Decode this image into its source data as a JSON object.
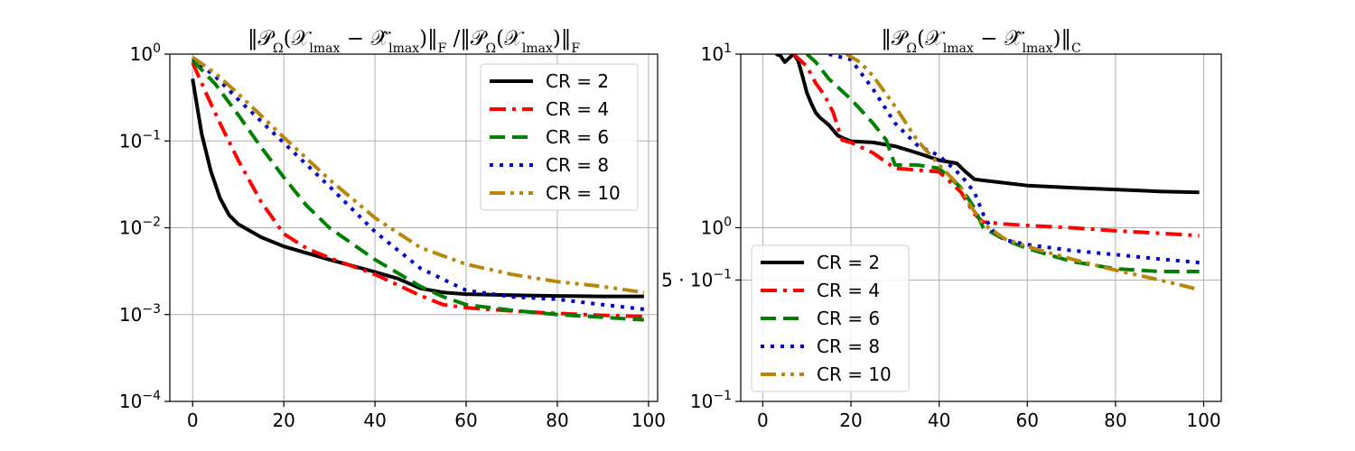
{
  "chart_data": [
    {
      "type": "line",
      "title": "‖𝒫Ω(𝒳lmax − 𝒳̂lmax)‖F /‖𝒫Ω(𝒳lmax)‖F",
      "title_parts": [
        "‖𝒫",
        "Ω",
        "(𝒳",
        "lmax",
        " − ",
        "𝒳̂",
        "lmax",
        ")‖",
        "F",
        " /‖𝒫",
        "Ω",
        "(𝒳",
        "lmax",
        ")‖",
        "F"
      ],
      "xlabel": "",
      "ylabel": "",
      "yscale": "log",
      "xlim": [
        -5,
        102
      ],
      "ylim": [
        0.0001,
        1
      ],
      "xticks": [
        0,
        20,
        40,
        60,
        80,
        100
      ],
      "xtick_labels": [
        "0",
        "20",
        "40",
        "60",
        "80",
        "100"
      ],
      "yticks": [
        0.0001,
        0.001,
        0.01,
        0.1,
        1
      ],
      "ytick_labels": [
        {
          "base": "10",
          "exp": "−4"
        },
        {
          "base": "10",
          "exp": "−3"
        },
        {
          "base": "10",
          "exp": "−2"
        },
        {
          "base": "10",
          "exp": "−1"
        },
        {
          "base": "10",
          "exp": "0"
        }
      ],
      "grid": true,
      "legend_position": "upper-right",
      "series": [
        {
          "name": "CR = 2",
          "color": "#000000",
          "dash": "solid",
          "x": [
            0,
            2,
            4,
            6,
            8,
            10,
            15,
            20,
            30,
            40,
            45,
            50,
            55,
            60,
            70,
            80,
            90,
            99
          ],
          "y": [
            0.52,
            0.12,
            0.045,
            0.022,
            0.014,
            0.011,
            0.0078,
            0.0061,
            0.0043,
            0.0031,
            0.0026,
            0.002,
            0.0018,
            0.00172,
            0.00167,
            0.00164,
            0.00162,
            0.00162
          ]
        },
        {
          "name": "CR = 4",
          "color": "#ff0000",
          "dash": "dashdot",
          "x": [
            0,
            3,
            6,
            10,
            15,
            20,
            25,
            30,
            40,
            50,
            55,
            60,
            70,
            80,
            90,
            99
          ],
          "y": [
            0.8,
            0.35,
            0.16,
            0.06,
            0.02,
            0.0085,
            0.0058,
            0.0045,
            0.0029,
            0.00165,
            0.0013,
            0.0012,
            0.0011,
            0.00103,
            0.00098,
            0.00095
          ]
        },
        {
          "name": "CR = 6",
          "color": "#008000",
          "dash": "dashed",
          "x": [
            0,
            5,
            10,
            15,
            20,
            25,
            30,
            40,
            50,
            55,
            60,
            70,
            80,
            90,
            99
          ],
          "y": [
            0.85,
            0.45,
            0.2,
            0.085,
            0.038,
            0.018,
            0.01,
            0.0043,
            0.0021,
            0.0016,
            0.0013,
            0.00112,
            0.001,
            0.00093,
            0.00087
          ]
        },
        {
          "name": "CR = 8",
          "color": "#0000cc",
          "dash": "dotted",
          "x": [
            0,
            5,
            10,
            20,
            30,
            40,
            50,
            60,
            70,
            80,
            90,
            99
          ],
          "y": [
            0.9,
            0.55,
            0.3,
            0.095,
            0.03,
            0.009,
            0.0034,
            0.0019,
            0.0016,
            0.0015,
            0.0013,
            0.00115
          ]
        },
        {
          "name": "CR = 10",
          "color": "#b8860b",
          "dash": "dashdotdot",
          "x": [
            0,
            5,
            10,
            20,
            30,
            40,
            50,
            60,
            70,
            80,
            90,
            99
          ],
          "y": [
            0.92,
            0.6,
            0.35,
            0.11,
            0.036,
            0.013,
            0.0059,
            0.0038,
            0.0029,
            0.0024,
            0.0021,
            0.0018
          ]
        }
      ]
    },
    {
      "type": "line",
      "title": "‖𝒫Ω(𝒳lmax − 𝒳̂lmax)‖C",
      "title_parts": [
        "‖𝒫",
        "Ω",
        "(𝒳",
        "lmax",
        " − ",
        "𝒳̂",
        "lmax",
        ")‖",
        "C"
      ],
      "xlabel": "",
      "ylabel": "",
      "yscale": "log",
      "xlim": [
        -5,
        104
      ],
      "ylim": [
        0.1,
        10
      ],
      "xticks": [
        0,
        20,
        40,
        60,
        80,
        100
      ],
      "xtick_labels": [
        "0",
        "20",
        "40",
        "60",
        "80",
        "100"
      ],
      "yticks": [
        0.1,
        0.5,
        1,
        10
      ],
      "ytick_labels": [
        {
          "base": "10",
          "exp": "−1"
        },
        {
          "base": "5 · 10",
          "exp": "−1"
        },
        {
          "base": "10",
          "exp": "0"
        },
        {
          "base": "10",
          "exp": "1"
        }
      ],
      "grid": true,
      "legend_position": "lower-left",
      "series": [
        {
          "name": "CR = 2",
          "color": "#000000",
          "dash": "solid",
          "x": [
            3,
            4,
            5,
            6,
            7,
            8,
            9,
            10,
            11,
            12,
            13,
            14,
            15,
            17,
            18,
            20,
            25,
            30,
            35,
            40,
            44,
            46,
            48,
            52,
            60,
            70,
            80,
            90,
            99
          ],
          "y": [
            10,
            9.8,
            9.0,
            9.5,
            10,
            9.2,
            7.5,
            6.0,
            5.2,
            4.6,
            4.3,
            4.1,
            3.9,
            3.4,
            3.3,
            3.15,
            3.1,
            2.95,
            2.7,
            2.45,
            2.35,
            2.1,
            1.9,
            1.85,
            1.75,
            1.7,
            1.66,
            1.62,
            1.6
          ]
        },
        {
          "name": "CR = 4",
          "color": "#ff0000",
          "dash": "dashdot",
          "x": [
            7,
            10,
            12,
            14,
            16,
            17,
            18,
            20,
            25,
            30,
            35,
            40,
            45,
            48,
            50,
            55,
            60,
            70,
            80,
            90,
            99
          ],
          "y": [
            10,
            8.5,
            6.8,
            5.8,
            4.6,
            3.8,
            3.2,
            3.1,
            2.7,
            2.2,
            2.15,
            2.1,
            1.6,
            1.2,
            1.08,
            1.05,
            1.03,
            1.0,
            0.96,
            0.93,
            0.9
          ]
        },
        {
          "name": "CR = 6",
          "color": "#008000",
          "dash": "dashed",
          "x": [
            10,
            12,
            15,
            20,
            25,
            28,
            30,
            35,
            40,
            45,
            48,
            50,
            55,
            60,
            70,
            80,
            90,
            99
          ],
          "y": [
            10,
            9.0,
            7.2,
            5.5,
            4.0,
            3.2,
            2.3,
            2.3,
            2.2,
            1.7,
            1.3,
            1.0,
            0.85,
            0.76,
            0.64,
            0.58,
            0.56,
            0.56
          ]
        },
        {
          "name": "CR = 8",
          "color": "#0000cc",
          "dash": "dotted",
          "x": [
            15,
            20,
            25,
            30,
            35,
            40,
            45,
            48,
            50,
            52,
            55,
            60,
            70,
            80,
            90,
            99
          ],
          "y": [
            10,
            9.3,
            6.3,
            4.0,
            3.0,
            2.6,
            2.0,
            1.6,
            1.2,
            0.97,
            0.85,
            0.8,
            0.74,
            0.7,
            0.66,
            0.63
          ]
        },
        {
          "name": "CR = 10",
          "color": "#b8860b",
          "dash": "dashdotdot",
          "x": [
            19,
            22,
            25,
            30,
            35,
            40,
            45,
            47,
            50,
            55,
            60,
            70,
            80,
            90,
            99
          ],
          "y": [
            10,
            9.0,
            7.5,
            5.0,
            3.2,
            2.3,
            1.7,
            1.35,
            1.05,
            0.86,
            0.78,
            0.66,
            0.57,
            0.5,
            0.44
          ]
        }
      ]
    }
  ]
}
